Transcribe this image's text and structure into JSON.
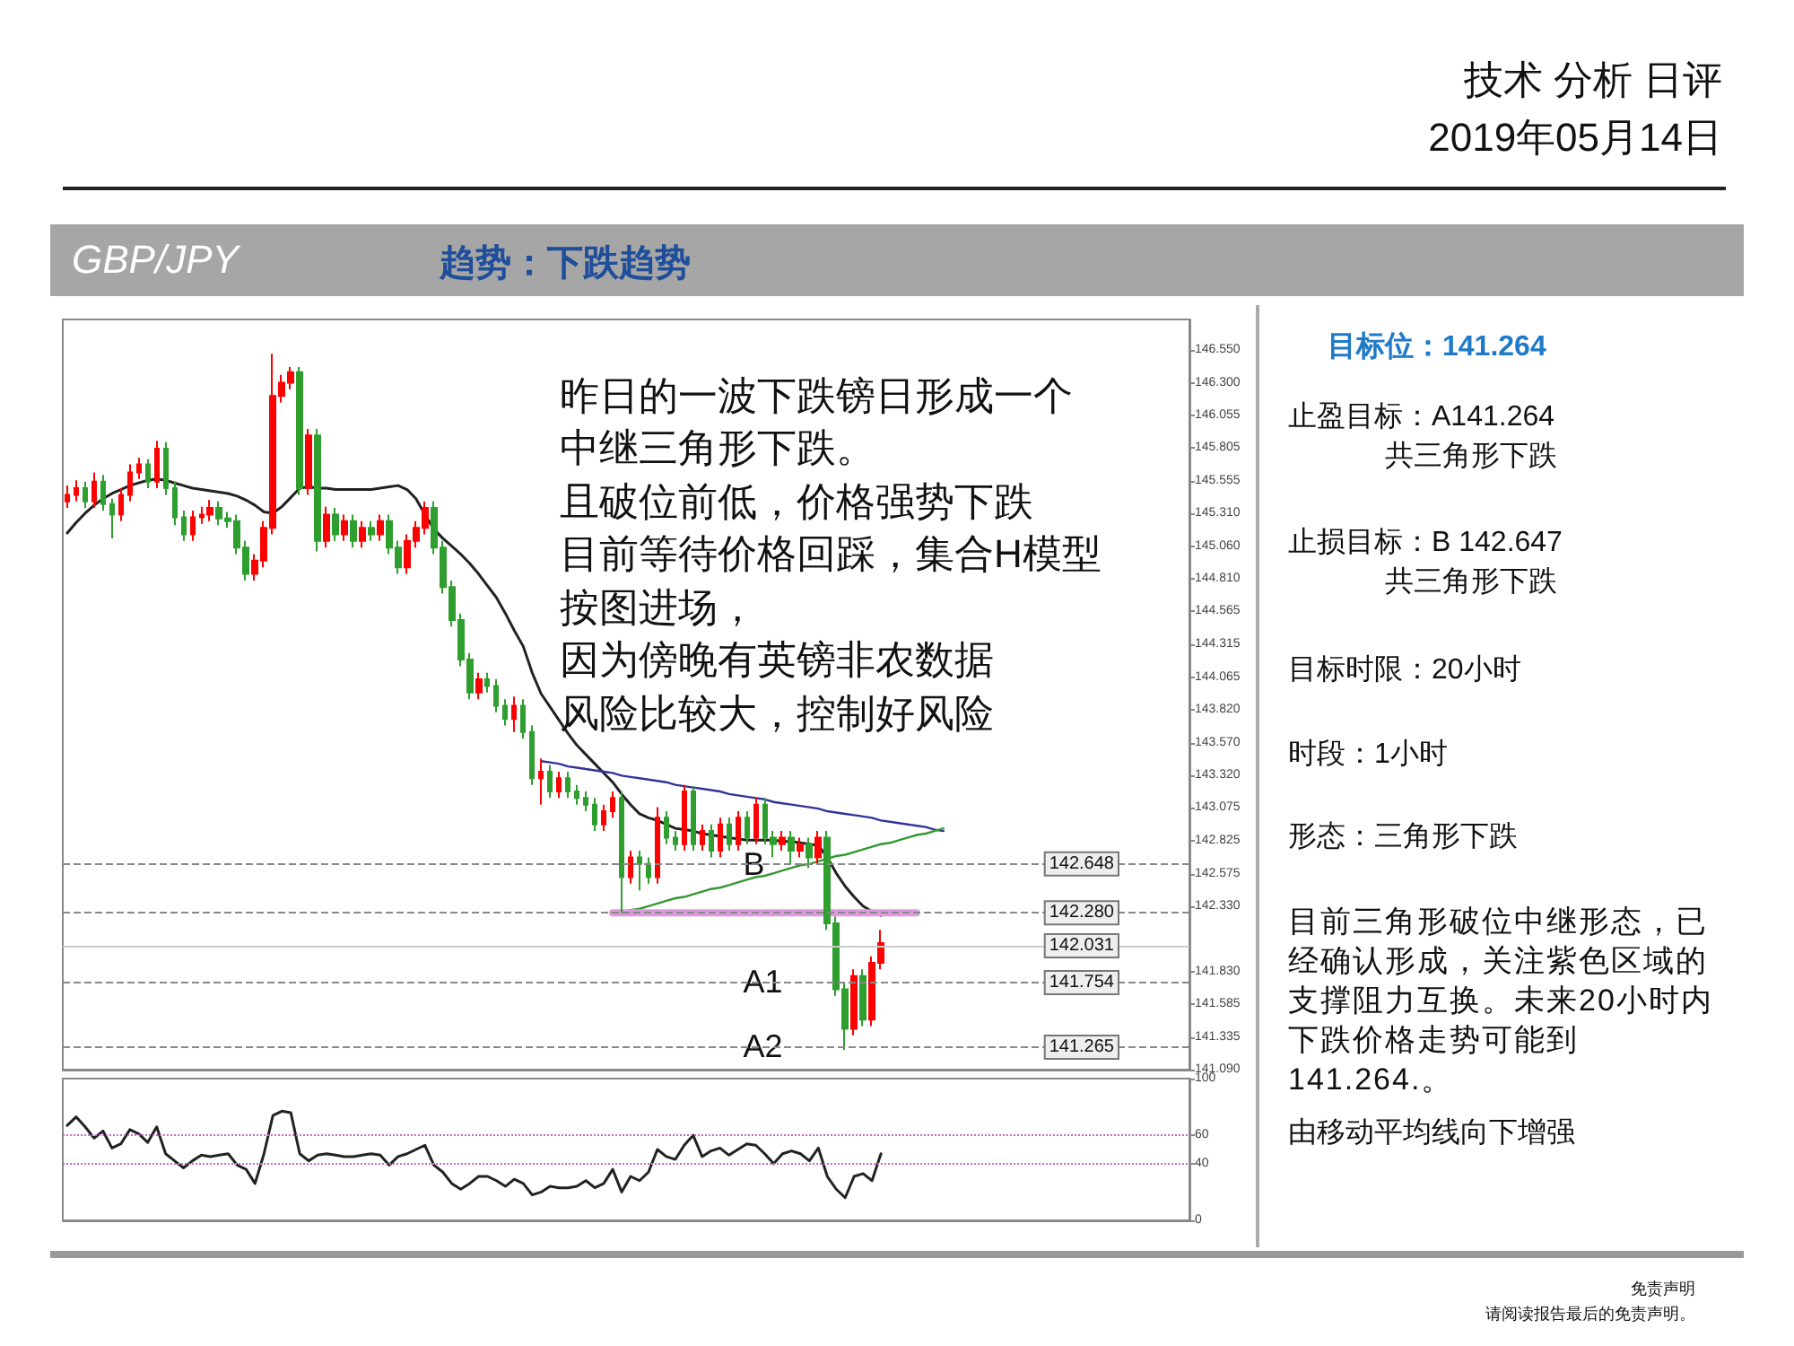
{
  "chart_data": [
    {
      "type": "candlestick",
      "title": "GBP/JPY",
      "subtitle": "趋势：下跌趋势",
      "annotations": [
        "技术 分析 日评",
        "2019年05月14日",
        "昨日的一波下跌镑日形成一个",
        "中继三角形下跌。",
        "且破位前低，价格强势下跌",
        "目前等待价格回踩，集合H模型",
        "按图进场，",
        "因为傍晚有英镑非农数据",
        "风险比较大，控制好风险",
        "目标位：141.264",
        "止盈目标：A141.264\n共三角形下跌",
        "止损目标：B 142.647\n共三角形下跌",
        "目标时限：20小时",
        "时段：1小时",
        "形态：三角形下跌",
        "目前三角形破位中继形态，已经确认形成，关注紫色区域的支撑阻力互换。未来20小时内下跌价格走势可能到141.264.。",
        "由移动平均线向下增强",
        "免责声明",
        "请阅读报告最后的免责声明。",
        {
          "text": "B",
          "y": 142.65
        },
        {
          "text": "A1",
          "y": 141.754
        },
        {
          "text": "A2",
          "y": 141.265
        }
      ],
      "categories": [
        null,
        null,
        null,
        null,
        null,
        null,
        null,
        null,
        null,
        null,
        null,
        null,
        null,
        null,
        null,
        null,
        null,
        null,
        null,
        null,
        null,
        null,
        null,
        null,
        null,
        null,
        null,
        null,
        null,
        null,
        null,
        null,
        null,
        null,
        null,
        null,
        null,
        null,
        null,
        null,
        null,
        null,
        null,
        null,
        null,
        null,
        null,
        null,
        null,
        null,
        null,
        null,
        null,
        null,
        null,
        null,
        null,
        null,
        null,
        null,
        null,
        null,
        null,
        null,
        null,
        null,
        null,
        null,
        null,
        null,
        null,
        null,
        null,
        null,
        null,
        null,
        null,
        null,
        null,
        null,
        null,
        null,
        null,
        null,
        null,
        null,
        null,
        null,
        null,
        null,
        null,
        null,
        null,
        null,
        null,
        null,
        null,
        null,
        null,
        null,
        null,
        null,
        null,
        null,
        null,
        null,
        null,
        null,
        null,
        null,
        null,
        null,
        null,
        null,
        null,
        null,
        null,
        null,
        null,
        null,
        null,
        null,
        null,
        null,
        null,
        null
      ],
      "ohlc": [
        [
          145.4,
          145.52,
          145.35,
          145.45
        ],
        [
          145.45,
          145.56,
          145.4,
          145.5
        ],
        [
          145.5,
          145.55,
          145.35,
          145.4
        ],
        [
          145.4,
          145.62,
          145.35,
          145.55
        ],
        [
          145.55,
          145.6,
          145.33,
          145.38
        ],
        [
          145.38,
          145.42,
          145.12,
          145.3
        ],
        [
          145.3,
          145.5,
          145.25,
          145.45
        ],
        [
          145.45,
          145.68,
          145.4,
          145.62
        ],
        [
          145.62,
          145.73,
          145.57,
          145.68
        ],
        [
          145.68,
          145.72,
          145.5,
          145.55
        ],
        [
          145.55,
          145.86,
          145.5,
          145.8
        ],
        [
          145.8,
          145.85,
          145.45,
          145.5
        ],
        [
          145.5,
          145.55,
          145.22,
          145.28
        ],
        [
          145.28,
          145.33,
          145.1,
          145.15
        ],
        [
          145.15,
          145.33,
          145.1,
          145.28
        ],
        [
          145.28,
          145.36,
          145.23,
          145.3
        ],
        [
          145.3,
          145.41,
          145.25,
          145.35
        ],
        [
          145.35,
          145.4,
          145.22,
          145.27
        ],
        [
          145.27,
          145.32,
          145.2,
          145.25
        ],
        [
          145.25,
          145.3,
          145.0,
          145.05
        ],
        [
          145.05,
          145.1,
          144.8,
          144.85
        ],
        [
          144.85,
          145.0,
          144.8,
          144.95
        ],
        [
          144.95,
          145.25,
          144.9,
          145.2
        ],
        [
          145.2,
          146.52,
          145.15,
          146.2
        ],
        [
          146.2,
          146.36,
          146.15,
          146.3
        ],
        [
          146.3,
          146.42,
          146.25,
          146.38
        ],
        [
          146.38,
          146.42,
          145.45,
          145.5
        ],
        [
          145.5,
          145.95,
          145.45,
          145.9
        ],
        [
          145.9,
          145.95,
          145.02,
          145.1
        ],
        [
          145.1,
          145.36,
          145.05,
          145.3
        ],
        [
          145.3,
          145.35,
          145.1,
          145.15
        ],
        [
          145.15,
          145.3,
          145.1,
          145.25
        ],
        [
          145.25,
          145.3,
          145.05,
          145.1
        ],
        [
          145.1,
          145.25,
          145.05,
          145.2
        ],
        [
          145.2,
          145.25,
          145.1,
          145.15
        ],
        [
          145.15,
          145.3,
          145.1,
          145.25
        ],
        [
          145.25,
          145.3,
          145.0,
          145.05
        ],
        [
          145.05,
          145.1,
          144.85,
          144.9
        ],
        [
          144.9,
          145.15,
          144.85,
          145.1
        ],
        [
          145.1,
          145.25,
          145.05,
          145.2
        ],
        [
          145.2,
          145.4,
          145.15,
          145.35
        ],
        [
          145.35,
          145.4,
          145.0,
          145.05
        ],
        [
          145.05,
          145.1,
          144.7,
          144.75
        ],
        [
          144.75,
          144.8,
          144.45,
          144.5
        ],
        [
          144.5,
          144.55,
          144.15,
          144.2
        ],
        [
          144.2,
          144.25,
          143.9,
          143.95
        ],
        [
          143.95,
          144.1,
          143.9,
          144.05
        ],
        [
          144.05,
          144.1,
          143.95,
          144.0
        ],
        [
          144.0,
          144.05,
          143.8,
          143.85
        ],
        [
          143.85,
          143.9,
          143.7,
          143.75
        ],
        [
          143.75,
          143.92,
          143.65,
          143.85
        ],
        [
          143.85,
          143.9,
          143.6,
          143.65
        ],
        [
          143.65,
          143.7,
          143.25,
          143.3
        ],
        [
          143.3,
          143.45,
          143.1,
          143.35
        ],
        [
          143.35,
          143.4,
          143.15,
          143.2
        ],
        [
          143.2,
          143.35,
          143.15,
          143.3
        ],
        [
          143.3,
          143.35,
          143.15,
          143.2
        ],
        [
          143.2,
          143.25,
          143.1,
          143.15
        ],
        [
          143.15,
          143.2,
          143.05,
          143.1
        ],
        [
          143.1,
          143.15,
          142.9,
          142.95
        ],
        [
          142.95,
          143.1,
          142.9,
          143.05
        ],
        [
          143.05,
          143.2,
          143.0,
          143.15
        ],
        [
          143.15,
          143.2,
          142.28,
          142.55
        ],
        [
          142.55,
          142.75,
          142.5,
          142.7
        ],
        [
          142.7,
          142.75,
          142.45,
          142.65
        ],
        [
          142.65,
          142.7,
          142.5,
          142.55
        ],
        [
          142.55,
          143.08,
          142.5,
          143.0
        ],
        [
          143.0,
          143.05,
          142.8,
          142.85
        ],
        [
          142.85,
          142.9,
          142.75,
          142.8
        ],
        [
          142.8,
          143.25,
          142.75,
          143.2
        ],
        [
          143.2,
          143.24,
          142.75,
          142.8
        ],
        [
          142.8,
          142.95,
          142.75,
          142.9
        ],
        [
          142.9,
          142.95,
          142.7,
          142.75
        ],
        [
          142.75,
          143.0,
          142.7,
          142.95
        ],
        [
          142.95,
          143.0,
          142.75,
          142.8
        ],
        [
          142.8,
          143.05,
          142.75,
          143.0
        ],
        [
          143.0,
          143.05,
          142.8,
          142.85
        ],
        [
          142.85,
          143.15,
          142.8,
          143.1
        ],
        [
          143.1,
          143.15,
          142.8,
          142.85
        ],
        [
          142.85,
          142.9,
          142.7,
          142.8
        ],
        [
          142.8,
          142.9,
          142.75,
          142.85
        ],
        [
          142.85,
          142.9,
          142.65,
          142.75
        ],
        [
          142.75,
          142.85,
          142.7,
          142.8
        ],
        [
          142.8,
          142.85,
          142.62,
          142.7
        ],
        [
          142.7,
          142.9,
          142.65,
          142.85
        ],
        [
          142.85,
          142.9,
          142.15,
          142.2
        ],
        [
          142.2,
          142.25,
          141.65,
          141.7
        ],
        [
          141.7,
          141.75,
          141.24,
          141.4
        ],
        [
          141.4,
          141.85,
          141.35,
          141.8
        ],
        [
          141.8,
          141.85,
          141.42,
          141.47
        ],
        [
          141.47,
          141.95,
          141.42,
          141.9
        ],
        [
          141.9,
          142.15,
          141.85,
          142.05
        ],
        null,
        null,
        null,
        null,
        null,
        null,
        null,
        null,
        null,
        null,
        null,
        null,
        null,
        null,
        null,
        null,
        null,
        null,
        null,
        null,
        null,
        null,
        null,
        null,
        null,
        null,
        null,
        null,
        null,
        null,
        null,
        null,
        null,
        null
      ],
      "colors": [
        "#ff0000",
        "#ff0000",
        "#2e9e2e",
        "#ff0000",
        "#2e9e2e",
        "#2e9e2e",
        "#ff0000",
        "#ff0000",
        "#ff0000",
        "#2e9e2e",
        "#ff0000",
        "#2e9e2e",
        "#2e9e2e",
        "#2e9e2e",
        "#ff0000",
        "#ff0000",
        "#ff0000",
        "#2e9e2e",
        "#2e9e2e",
        "#2e9e2e",
        "#2e9e2e",
        "#ff0000",
        "#ff0000",
        "#ff0000",
        "#ff0000",
        "#ff0000",
        "#2e9e2e",
        "#ff0000",
        "#2e9e2e",
        "#ff0000",
        "#2e9e2e",
        "#ff0000",
        "#2e9e2e",
        "#ff0000",
        "#2e9e2e",
        "#ff0000",
        "#2e9e2e",
        "#2e9e2e",
        "#ff0000",
        "#ff0000",
        "#ff0000",
        "#2e9e2e",
        "#2e9e2e",
        "#2e9e2e",
        "#2e9e2e",
        "#2e9e2e",
        "#ff0000",
        "#2e9e2e",
        "#2e9e2e",
        "#2e9e2e",
        "#ff0000",
        "#2e9e2e",
        "#2e9e2e",
        "#ff0000",
        "#2e9e2e",
        "#ff0000",
        "#2e9e2e",
        "#2e9e2e",
        "#2e9e2e",
        "#2e9e2e",
        "#ff0000",
        "#ff0000",
        "#2e9e2e",
        "#ff0000",
        "#2e9e2e",
        "#2e9e2e",
        "#ff0000",
        "#2e9e2e",
        "#2e9e2e",
        "#ff0000",
        "#2e9e2e",
        "#ff0000",
        "#2e9e2e",
        "#ff0000",
        "#2e9e2e",
        "#ff0000",
        "#2e9e2e",
        "#ff0000",
        "#2e9e2e",
        "#2e9e2e",
        "#ff0000",
        "#2e9e2e",
        "#ff0000",
        "#2e9e2e",
        "#ff0000",
        "#2e9e2e",
        "#2e9e2e",
        "#2e9e2e",
        "#ff0000",
        "#2e9e2e",
        "#ff0000",
        "#ff0000",
        null,
        null,
        null,
        null,
        null,
        null,
        null,
        null,
        null,
        null,
        null,
        null,
        null,
        null,
        null,
        null,
        null,
        null,
        null,
        null,
        null,
        null,
        null,
        null,
        null,
        null,
        null,
        null,
        null,
        null,
        null,
        null,
        null,
        null
      ],
      "series": [
        {
          "type": "line",
          "color": "#222222",
          "values": [
            145.16,
            145.24,
            145.31,
            145.37,
            145.42,
            145.46,
            145.49,
            145.52,
            145.54,
            145.56,
            145.57,
            145.56,
            145.54,
            145.52,
            145.5,
            145.49,
            145.48,
            145.47,
            145.46,
            145.44,
            145.41,
            145.37,
            145.32,
            145.31,
            145.36,
            145.43,
            145.5,
            145.51,
            145.5,
            145.5,
            145.49,
            145.49,
            145.49,
            145.49,
            145.49,
            145.5,
            145.51,
            145.52,
            145.49,
            145.42,
            145.3,
            145.19,
            145.12,
            145.06,
            145.0,
            144.93,
            144.85,
            144.76,
            144.67,
            144.55,
            144.42,
            144.3,
            144.1,
            143.94,
            143.84,
            143.74,
            143.64,
            143.55,
            143.48,
            143.41,
            143.34,
            143.27,
            143.18,
            143.1,
            143.03,
            143.0,
            142.98,
            142.95,
            142.92,
            142.91,
            142.9,
            142.88,
            142.87,
            142.86,
            142.85,
            142.84,
            142.83,
            142.83,
            142.83,
            142.83,
            142.82,
            142.82,
            142.81,
            142.8,
            142.79,
            142.7,
            142.58,
            142.48,
            142.4,
            142.33,
            142.29,
            142.26,
            null,
            null,
            null,
            null,
            null,
            null,
            null,
            null,
            null,
            null,
            null,
            null,
            null,
            null,
            null,
            null,
            null,
            null,
            null,
            null,
            null,
            null,
            null,
            null,
            null,
            null,
            null,
            null,
            null,
            null,
            null,
            null,
            null,
            null
          ]
        },
        {
          "type": "line",
          "color": "#333399",
          "values": [
            null,
            null,
            null,
            null,
            null,
            null,
            null,
            null,
            null,
            null,
            null,
            null,
            null,
            null,
            null,
            null,
            null,
            null,
            null,
            null,
            null,
            null,
            null,
            null,
            null,
            null,
            null,
            null,
            null,
            null,
            null,
            null,
            null,
            null,
            null,
            null,
            null,
            null,
            null,
            null,
            null,
            null,
            null,
            null,
            null,
            null,
            null,
            null,
            null,
            null,
            null,
            null,
            null,
            143.43,
            143.42,
            143.41,
            143.39,
            143.38,
            143.37,
            143.36,
            143.35,
            143.34,
            143.32,
            143.31,
            143.3,
            143.29,
            143.28,
            143.27,
            143.25,
            143.24,
            143.23,
            143.22,
            143.21,
            143.2,
            143.18,
            143.17,
            143.16,
            143.15,
            143.14,
            143.12,
            143.11,
            143.1,
            143.09,
            143.08,
            143.07,
            143.05,
            143.04,
            143.03,
            143.02,
            143.01,
            143.0,
            142.98,
            142.97,
            142.96,
            142.95,
            142.94,
            142.93,
            142.91,
            142.9,
            null,
            null,
            null,
            null,
            null,
            null,
            null,
            null,
            null,
            null,
            null,
            null,
            null,
            null,
            null,
            null,
            null,
            null,
            null,
            null,
            null,
            null,
            null,
            null,
            null,
            null,
            null
          ]
        },
        {
          "type": "line",
          "color": "#339933",
          "values": [
            null,
            null,
            null,
            null,
            null,
            null,
            null,
            null,
            null,
            null,
            null,
            null,
            null,
            null,
            null,
            null,
            null,
            null,
            null,
            null,
            null,
            null,
            null,
            null,
            null,
            null,
            null,
            null,
            null,
            null,
            null,
            null,
            null,
            null,
            null,
            null,
            null,
            null,
            null,
            null,
            null,
            null,
            null,
            null,
            null,
            null,
            null,
            null,
            null,
            null,
            null,
            null,
            null,
            null,
            null,
            null,
            null,
            null,
            null,
            null,
            null,
            142.26,
            142.28,
            142.3,
            142.31,
            142.33,
            142.35,
            142.37,
            142.39,
            142.4,
            142.42,
            142.44,
            142.46,
            142.47,
            142.49,
            142.51,
            142.53,
            142.55,
            142.56,
            142.58,
            142.6,
            142.62,
            142.64,
            142.65,
            142.67,
            142.69,
            142.71,
            142.72,
            142.74,
            142.76,
            142.78,
            142.8,
            142.81,
            142.83,
            142.85,
            142.87,
            142.88,
            142.9,
            142.92,
            null,
            null,
            null,
            null,
            null,
            null,
            null,
            null,
            null,
            null,
            null,
            null,
            null,
            null,
            null,
            null,
            null,
            null,
            null,
            null,
            null,
            null,
            null,
            null,
            null,
            null,
            null
          ]
        },
        {
          "type": "line",
          "color": "#dd99dd",
          "values": [
            null,
            null,
            null,
            null,
            null,
            null,
            null,
            null,
            null,
            null,
            null,
            null,
            null,
            null,
            null,
            null,
            null,
            null,
            null,
            null,
            null,
            null,
            null,
            null,
            null,
            null,
            null,
            null,
            null,
            null,
            null,
            null,
            null,
            null,
            null,
            null,
            null,
            null,
            null,
            null,
            null,
            null,
            null,
            null,
            null,
            null,
            null,
            null,
            null,
            null,
            null,
            null,
            null,
            null,
            null,
            null,
            null,
            null,
            null,
            null,
            null,
            142.28,
            142.28,
            142.28,
            142.28,
            142.28,
            142.28,
            142.28,
            142.28,
            142.28,
            142.28,
            142.28,
            142.28,
            142.28,
            142.28,
            142.28,
            142.28,
            142.28,
            142.28,
            142.28,
            142.28,
            142.28,
            142.28,
            142.28,
            142.28,
            142.28,
            142.28,
            142.28,
            142.28,
            142.28,
            142.28,
            142.28,
            142.28,
            142.28,
            142.28,
            142.28,
            null,
            null,
            null,
            null,
            null,
            null,
            null,
            null,
            null,
            null,
            null,
            null,
            null,
            null,
            null,
            null,
            null,
            null,
            null,
            null,
            null,
            null,
            null,
            null,
            null,
            null,
            null,
            null,
            null,
            null
          ]
        }
      ],
      "ylim": [
        141.09,
        146.78
      ],
      "yticks": [
        {
          "value": 146.55,
          "label": "146.550"
        },
        {
          "value": 146.3,
          "label": "146.300"
        },
        146.055,
        145.805,
        145.555,
        {
          "value": 145.31,
          "label": "145.310"
        },
        {
          "value": 145.06,
          "label": "145.060"
        },
        {
          "value": 144.81,
          "label": "144.810"
        },
        144.565,
        144.315,
        144.065,
        {
          "value": 143.82,
          "label": "143.820"
        },
        {
          "value": 143.57,
          "label": "143.570"
        },
        {
          "value": 143.32,
          "label": "143.320"
        },
        143.075,
        142.825,
        142.575,
        {
          "value": 142.33,
          "label": "142.330"
        },
        {
          "value": 141.83,
          "label": "141.830"
        },
        141.585,
        141.335,
        {
          "value": 141.09,
          "label": "141.090"
        }
      ],
      "ref_lines": [
        {
          "axis": "y",
          "value": 142.648,
          "label": "142.648",
          "color": "#888888",
          "line_style": "dashed"
        },
        {
          "axis": "y",
          "value": 142.28,
          "label": "142.280",
          "color": "#888888",
          "line_style": "dashed"
        },
        {
          "axis": "y",
          "value": 141.754,
          "label": "141.754",
          "color": "#888888",
          "line_style": "dashed"
        },
        {
          "axis": "y",
          "value": 141.265,
          "label": "141.265",
          "color": "#888888",
          "line_style": "dashed"
        },
        {
          "axis": "y",
          "value": 142.031,
          "label": "142.031",
          "color": "#cccccc",
          "line_style": "solid"
        }
      ],
      "line_style": "solid",
      "tick_labels": "y"
    },
    {
      "type": "line",
      "categories": [
        null,
        null,
        null,
        null,
        null,
        null,
        null,
        null,
        null,
        null,
        null,
        null,
        null,
        null,
        null,
        null,
        null,
        null,
        null,
        null,
        null,
        null,
        null,
        null,
        null,
        null,
        null,
        null,
        null,
        null,
        null,
        null,
        null,
        null,
        null,
        null,
        null,
        null,
        null,
        null,
        null,
        null,
        null,
        null,
        null,
        null,
        null,
        null,
        null,
        null,
        null,
        null,
        null,
        null,
        null,
        null,
        null,
        null,
        null,
        null,
        null,
        null,
        null,
        null,
        null,
        null,
        null,
        null,
        null,
        null,
        null,
        null,
        null,
        null,
        null,
        null,
        null,
        null,
        null,
        null,
        null,
        null,
        null,
        null,
        null,
        null,
        null,
        null,
        null,
        null,
        null,
        null,
        null,
        null,
        null,
        null,
        null,
        null,
        null,
        null,
        null,
        null,
        null,
        null,
        null,
        null,
        null,
        null,
        null,
        null,
        null,
        null,
        null,
        null,
        null,
        null,
        null,
        null,
        null,
        null,
        null,
        null,
        null,
        null,
        null,
        null
      ],
      "series": [
        {
          "color": "#222222",
          "values": [
            67,
            73,
            66,
            58,
            63,
            51,
            54,
            64,
            61,
            55,
            66,
            47,
            42,
            37,
            42,
            46,
            45,
            46,
            47,
            39,
            36,
            26,
            47,
            74,
            77,
            76,
            47,
            42,
            46,
            47,
            46,
            45,
            45,
            46,
            47,
            46,
            39,
            45,
            47,
            50,
            53,
            39,
            34,
            26,
            22,
            26,
            31,
            31,
            28,
            24,
            29,
            26,
            18,
            20,
            24,
            23,
            23,
            24,
            28,
            23,
            26,
            36,
            20,
            31,
            28,
            34,
            50,
            45,
            43,
            53,
            60,
            45,
            49,
            51,
            46,
            50,
            54,
            53,
            47,
            40,
            47,
            49,
            47,
            42,
            51,
            31,
            22,
            16,
            31,
            33,
            28,
            47,
            null,
            null,
            null,
            null,
            null,
            null,
            null,
            null,
            null,
            null,
            null,
            null,
            null,
            null,
            null,
            null,
            null,
            null,
            null,
            null,
            null,
            null,
            null,
            null,
            null,
            null,
            null,
            null,
            null,
            null,
            null,
            null,
            null,
            null
          ]
        }
      ],
      "ylim": [
        0,
        100
      ],
      "yticks": [
        0,
        40,
        60,
        100
      ],
      "ref_lines": [
        {
          "axis": "y",
          "value": 40,
          "label": null,
          "color": "#cc66cc",
          "line_style": "dotted"
        },
        {
          "axis": "y",
          "value": 60,
          "label": null,
          "color": "#cc66cc",
          "line_style": "dotted"
        }
      ],
      "line_style": "solid",
      "tick_labels": "y"
    }
  ]
}
